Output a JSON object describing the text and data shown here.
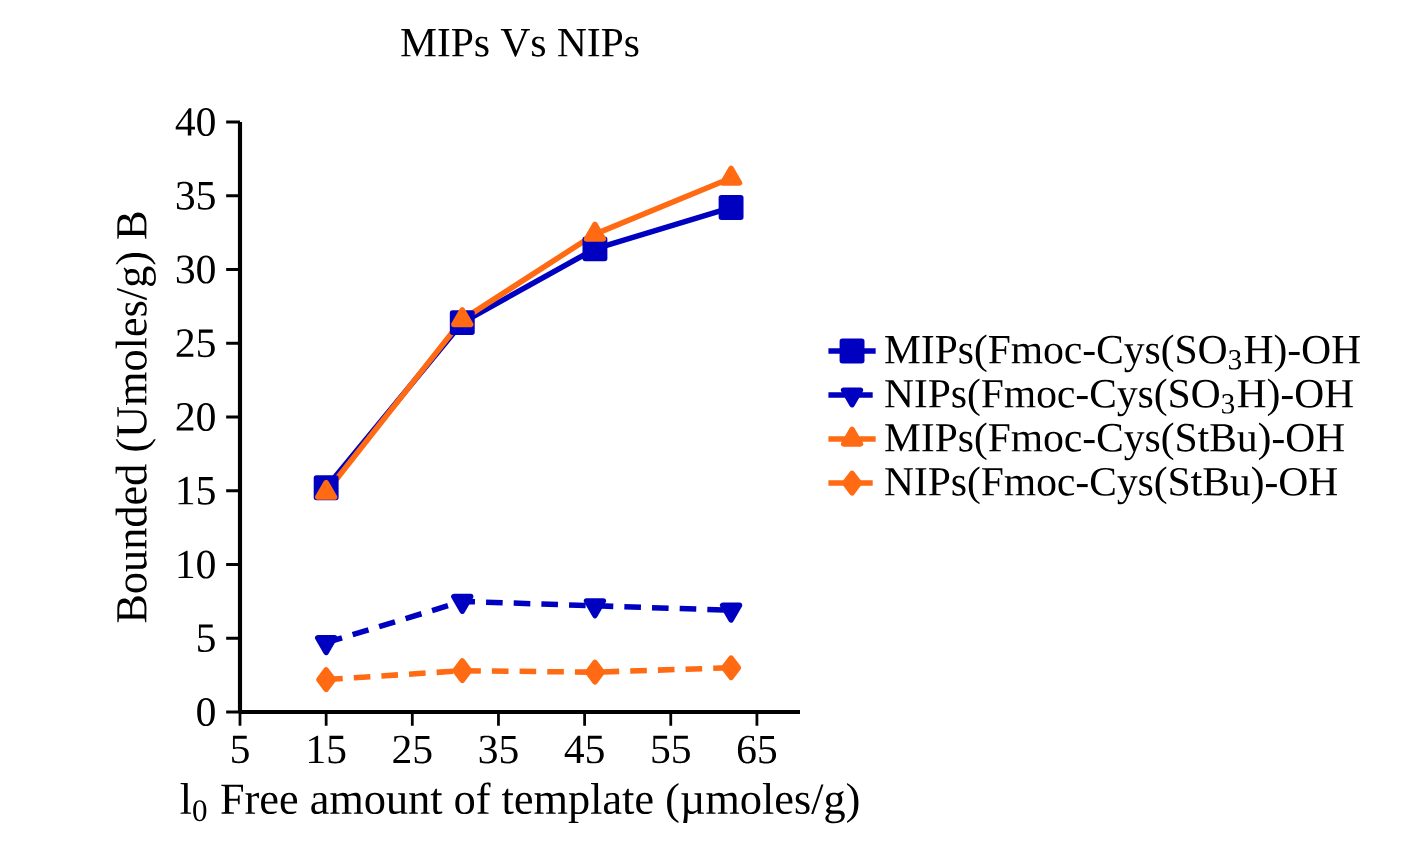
{
  "chart_data": {
    "type": "line",
    "title": "MIPs Vs NIPs",
    "xlabel": "l$_{0}$ Free amount of template (µmoles/g)",
    "ylabel": "Bounded (Umoles/g) B",
    "xlim": [
      5,
      70
    ],
    "ylim": [
      0,
      40
    ],
    "xticks": [
      5,
      15,
      25,
      35,
      45,
      55,
      65
    ],
    "yticks": [
      0,
      5,
      10,
      15,
      20,
      25,
      30,
      35,
      40
    ],
    "legend": "right",
    "grid": false,
    "series": [
      {
        "name": "MIPs(Fmoc-Cys(SO$_{3}$H)-OH",
        "color": "#0000c0",
        "marker": "square",
        "line_style": "solid",
        "x": [
          15,
          30.8,
          46.2,
          62
        ],
        "values": [
          15.2,
          26.4,
          31.4,
          34.2
        ]
      },
      {
        "name": "NIPs(Fmoc-Cys(SO$_{3}$H)-OH",
        "color": "#0000c0",
        "marker": "triangle-down",
        "line_style": "dashed",
        "x": [
          15,
          30.8,
          46.2,
          62
        ],
        "values": [
          4.7,
          7.5,
          7.2,
          6.9
        ]
      },
      {
        "name": "MIPs(Fmoc-Cys(StBu)-OH",
        "color": "#ff6a13",
        "marker": "triangle",
        "line_style": "solid",
        "x": [
          15,
          30.8,
          46.2,
          62
        ],
        "values": [
          14.9,
          26.6,
          32.4,
          36.2
        ]
      },
      {
        "name": "NIPs(Fmoc-Cys(StBu)-OH",
        "color": "#ff6a13",
        "marker": "diamond",
        "line_style": "dashed",
        "x": [
          15,
          30.8,
          46.2,
          62
        ],
        "values": [
          2.2,
          2.8,
          2.7,
          3.0
        ]
      }
    ]
  }
}
